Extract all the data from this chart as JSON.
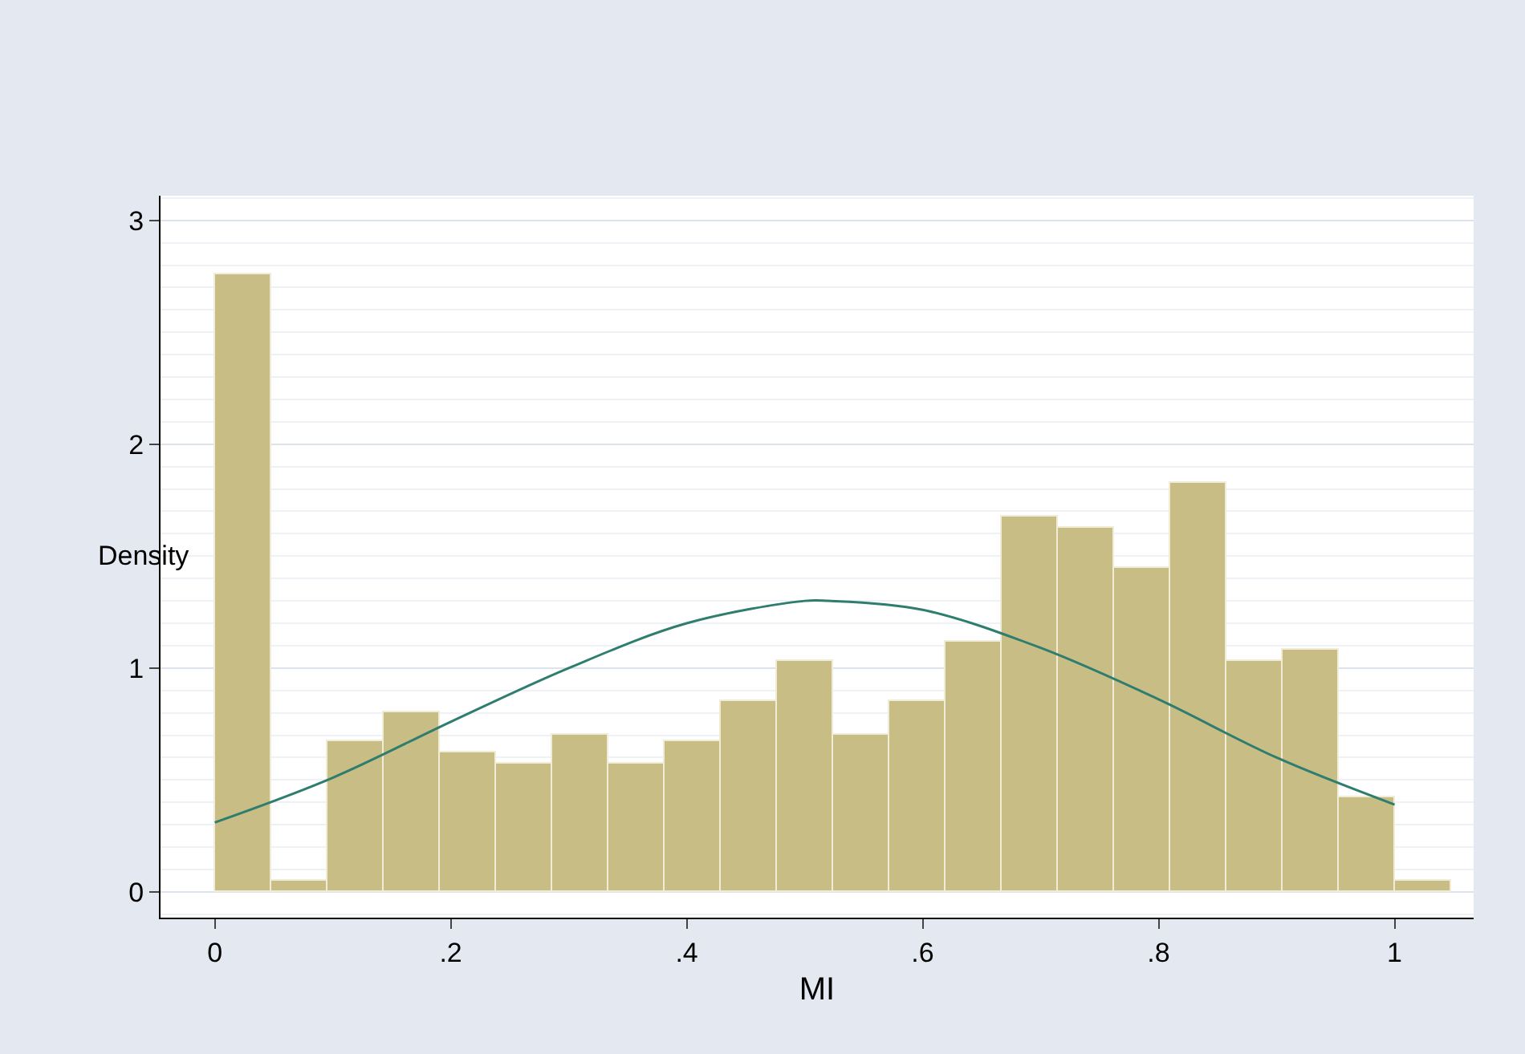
{
  "chart_data": {
    "type": "histogram",
    "xlabel": "MI",
    "ylabel": "Density",
    "bins": [
      0,
      0.0476,
      0.0952,
      0.1429,
      0.1905,
      0.2381,
      0.2857,
      0.3333,
      0.381,
      0.4286,
      0.4762,
      0.5238,
      0.5714,
      0.619,
      0.6667,
      0.7143,
      0.7619,
      0.8095,
      0.8571,
      0.9048,
      0.9524,
      1,
      1.0476
    ],
    "values": [
      2.76,
      0.05,
      0.67,
      0.8,
      0.62,
      0.57,
      0.7,
      0.57,
      0.67,
      0.85,
      1.03,
      0.7,
      0.85,
      1.12,
      1.68,
      1.63,
      1.45,
      1.83,
      1.03,
      1.08,
      0.42,
      0.05
    ],
    "color": "#c8bd85",
    "series": [
      {
        "type": "line",
        "color": "#2e7d6e",
        "x": [
          0,
          0.1,
          0.2,
          0.3,
          0.4,
          0.5,
          0.52,
          0.6,
          0.7,
          0.8,
          0.9,
          1
        ],
        "values": [
          0.31,
          0.51,
          0.76,
          1.0,
          1.2,
          1.3,
          1.3,
          1.26,
          1.09,
          0.86,
          0.6,
          0.39
        ]
      }
    ],
    "xlim": [
      -0.046,
      1.067
    ],
    "xticks": [
      0,
      {
        "value": 0.2,
        "label": ".2"
      },
      {
        "value": 0.4,
        "label": ".4"
      },
      {
        "value": 0.6,
        "label": ".6"
      },
      {
        "value": 0.8,
        "label": ".8"
      },
      1
    ],
    "ylim": [
      -0.115,
      3.11
    ],
    "yticks": [
      0,
      1,
      2,
      3
    ],
    "grid": "y"
  }
}
